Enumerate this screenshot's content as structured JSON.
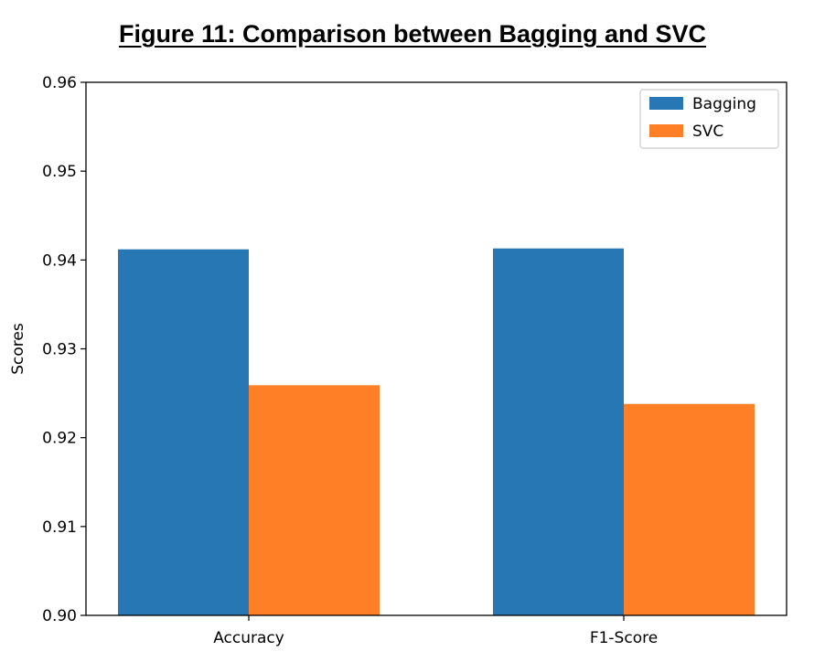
{
  "figure": {
    "title": "Figure 11: Comparison between Bagging and SVC"
  },
  "chart_data": {
    "type": "bar",
    "title": "",
    "xlabel": "",
    "ylabel": "Scores",
    "categories": [
      "Accuracy",
      "F1-Score"
    ],
    "series": [
      {
        "name": "Bagging",
        "color": "#2777b4",
        "values": [
          0.9412,
          0.9413
        ]
      },
      {
        "name": "SVC",
        "color": "#fe7f26",
        "values": [
          0.9259,
          0.9238
        ]
      }
    ],
    "ylim": [
      0.9,
      0.96
    ],
    "yticks": [
      "0.90",
      "0.91",
      "0.92",
      "0.93",
      "0.94",
      "0.95",
      "0.96"
    ],
    "grid": false,
    "legend_position": "top-right"
  }
}
